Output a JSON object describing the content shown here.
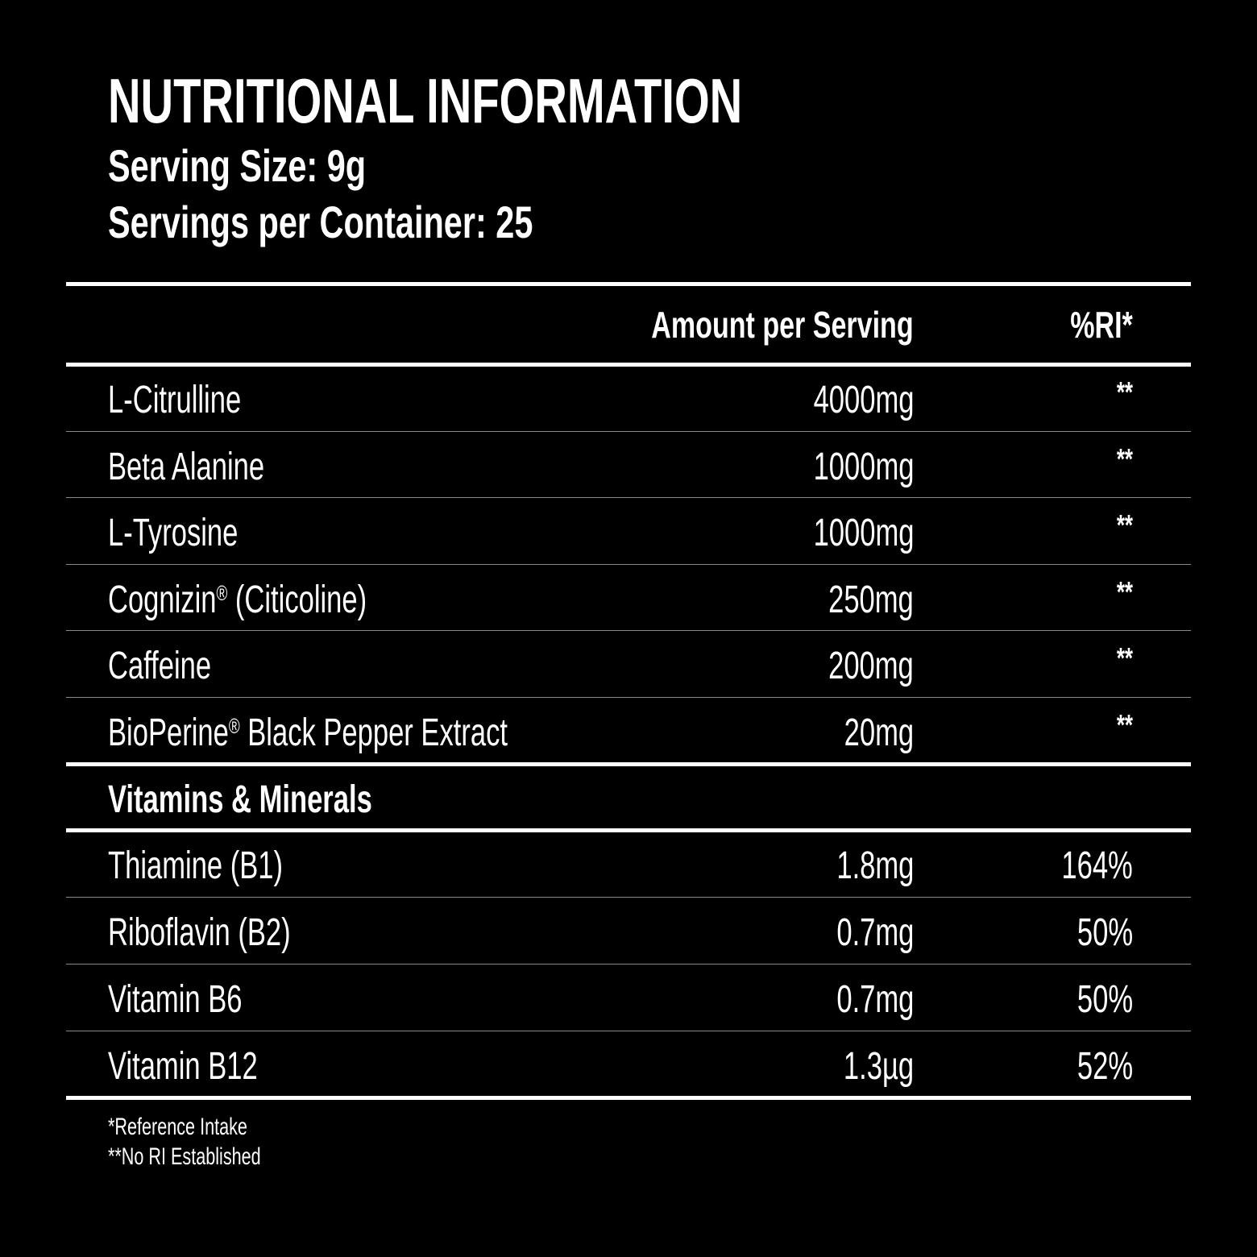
{
  "header": {
    "title": "NUTRITIONAL INFORMATION",
    "serving_size": "Serving Size: 9g",
    "servings_per_container": "Servings per Container: 25"
  },
  "table": {
    "col_amount": "Amount per Serving",
    "col_ri": "%RI*",
    "ingredients": [
      {
        "name": "L-Citrulline",
        "reg": "",
        "suffix": "",
        "amount": "4000mg",
        "ri": "**"
      },
      {
        "name": "Beta Alanine",
        "reg": "",
        "suffix": "",
        "amount": "1000mg",
        "ri": "**"
      },
      {
        "name": "L-Tyrosine",
        "reg": "",
        "suffix": "",
        "amount": "1000mg",
        "ri": "**"
      },
      {
        "name": "Cognizin",
        "reg": "®",
        "suffix": " (Citicoline)",
        "amount": "250mg",
        "ri": "**"
      },
      {
        "name": "Caffeine",
        "reg": "",
        "suffix": "",
        "amount": "200mg",
        "ri": "**"
      },
      {
        "name": "BioPerine",
        "reg": "®",
        "suffix": " Black Pepper Extract",
        "amount": "20mg",
        "ri": "**"
      }
    ],
    "section_label": "Vitamins & Minerals",
    "vitamins": [
      {
        "name": "Thiamine (B1)",
        "amount": "1.8mg",
        "ri": "164%"
      },
      {
        "name": "Riboflavin (B2)",
        "amount": "0.7mg",
        "ri": "50%"
      },
      {
        "name": "Vitamin B6",
        "amount": "0.7mg",
        "ri": "50%"
      },
      {
        "name": "Vitamin B12",
        "amount": "1.3µg",
        "ri": "52%"
      }
    ]
  },
  "footnotes": {
    "ri_note": "*Reference Intake",
    "no_ri_note": "**No RI Established"
  }
}
